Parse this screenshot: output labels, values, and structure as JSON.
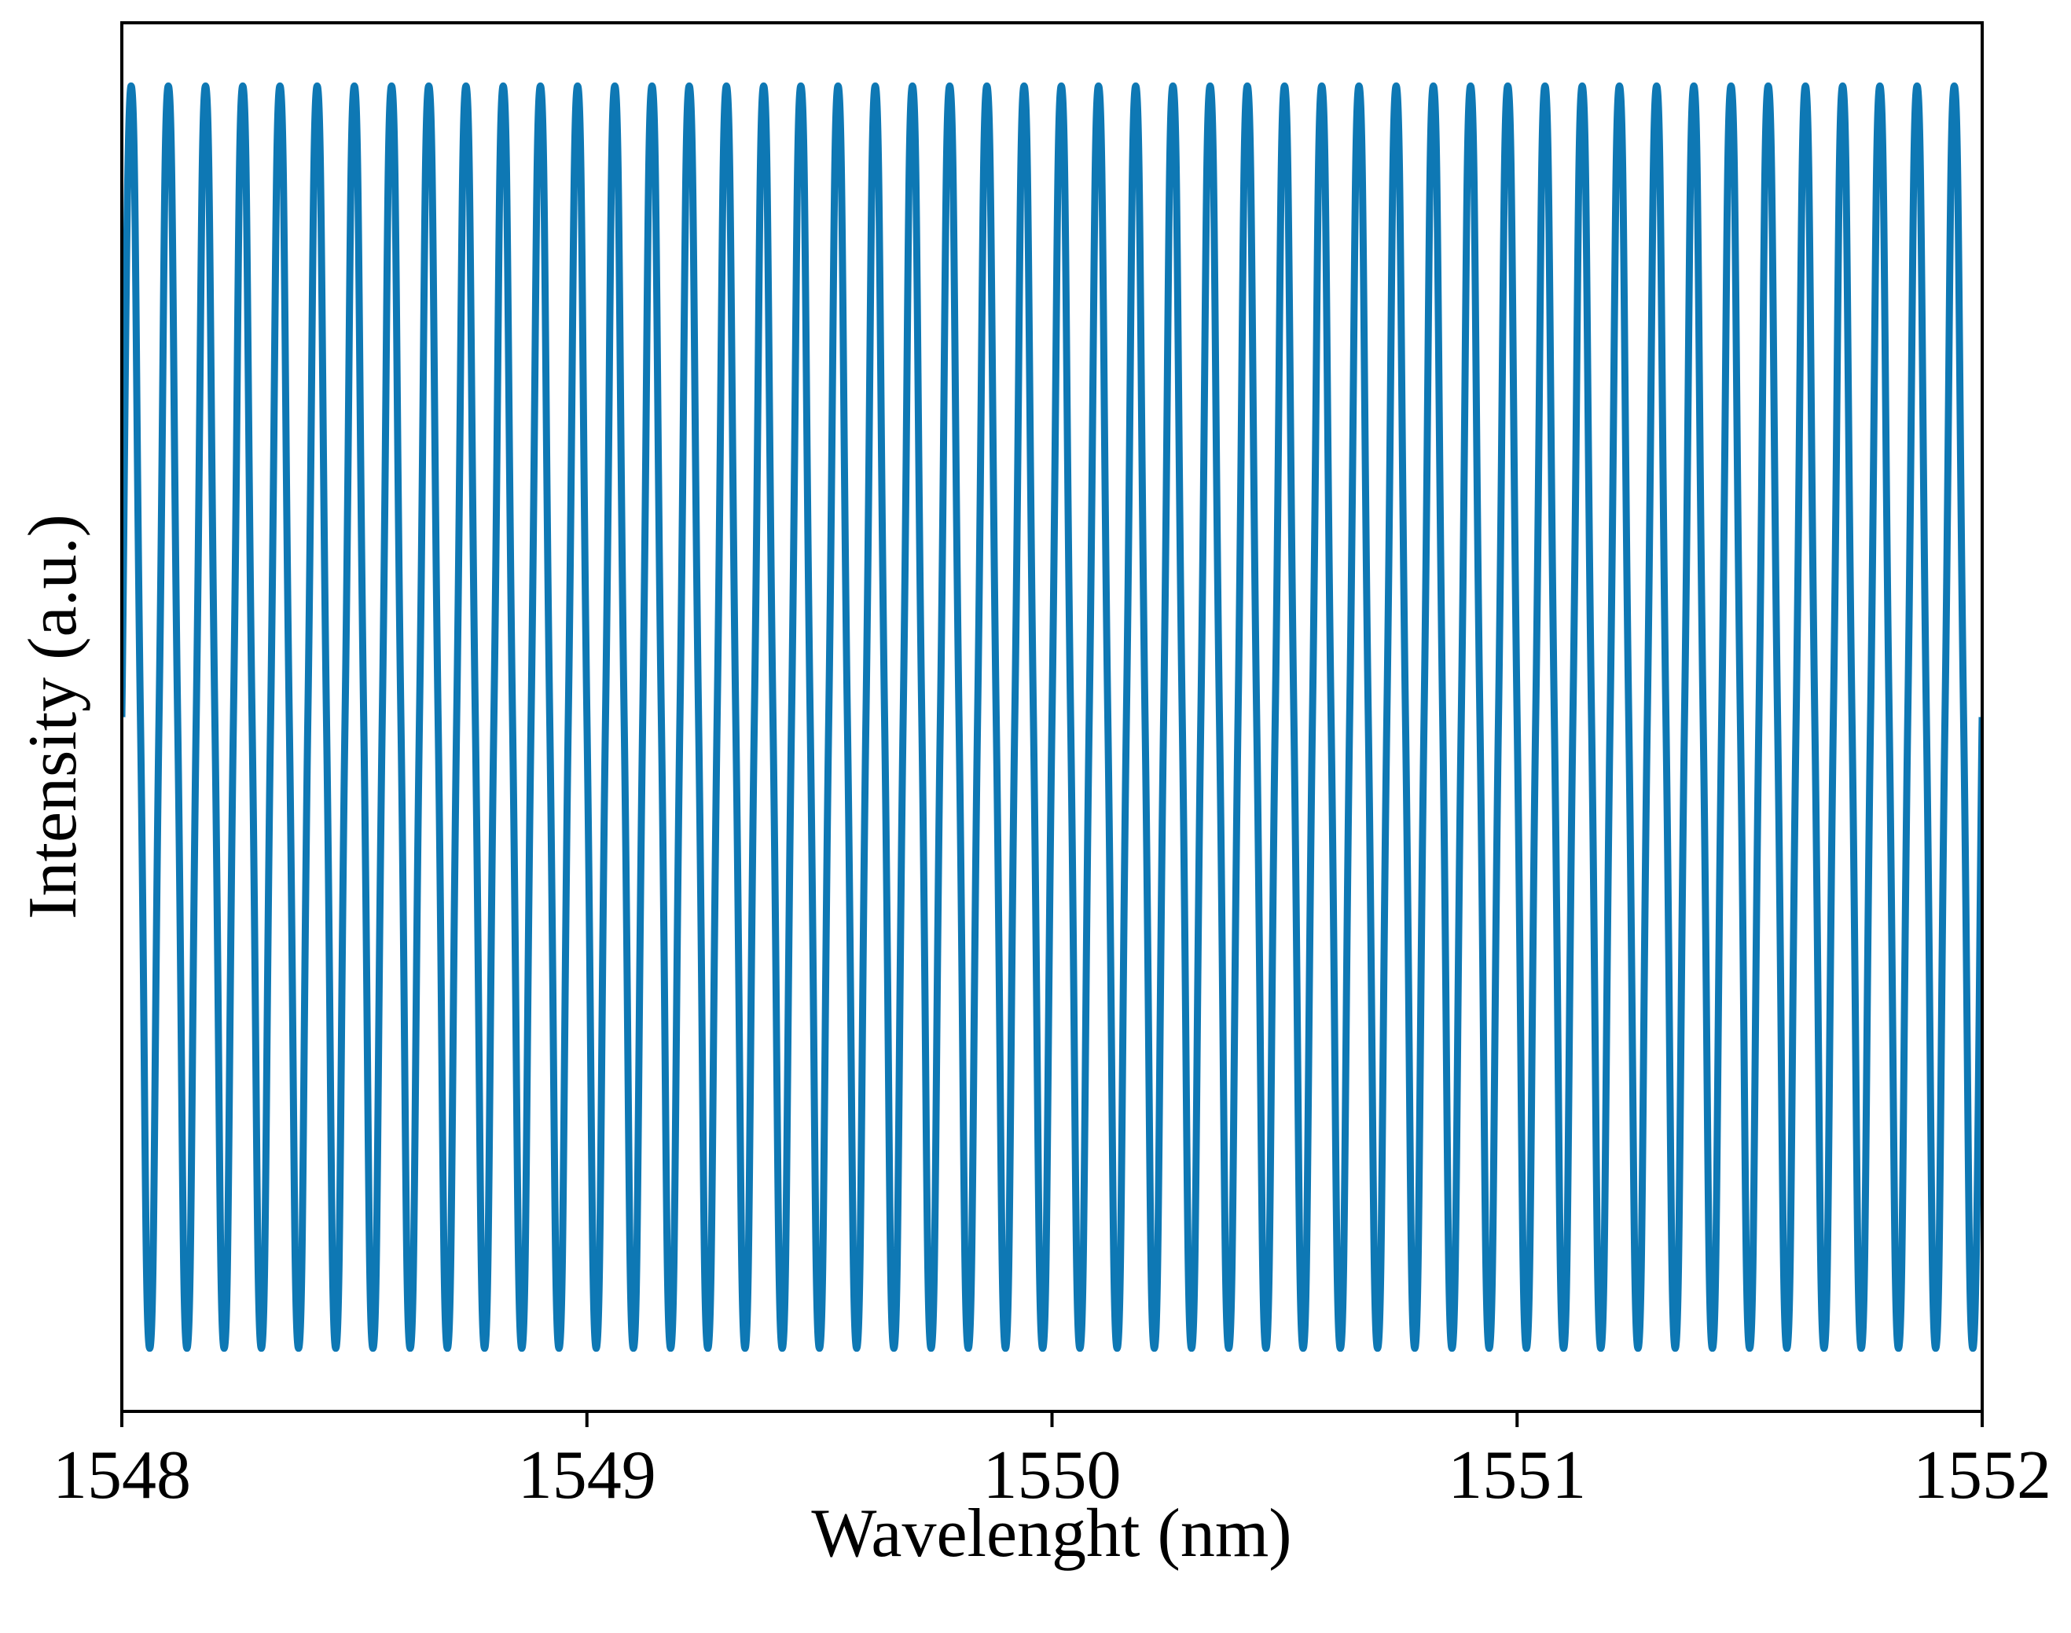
{
  "chart_data": {
    "type": "line",
    "xlabel": "Wavelenght (nm)",
    "ylabel": "Intensity (a.u.)",
    "color": "#0e78b4",
    "xlim": [
      1548,
      1552
    ],
    "ylim": [
      -0.05,
      1.05
    ],
    "xticks": [
      1548,
      1549,
      1550,
      1551,
      1552
    ],
    "x": [
      1548,
      1548.02,
      1548.04,
      1548.06,
      1548.08,
      1548.1,
      1548.12,
      1548.14,
      1548.16,
      1548.18,
      1548.2,
      1548.22,
      1548.24,
      1548.26,
      1548.28,
      1548.3,
      1548.32,
      1548.34,
      1548.36,
      1548.38,
      1548.4,
      1548.42,
      1548.44,
      1548.46,
      1548.48,
      1548.5,
      1548.52,
      1548.54,
      1548.56,
      1548.58,
      1548.6,
      1548.62,
      1548.64,
      1548.66,
      1548.68,
      1548.7,
      1548.72,
      1548.74,
      1548.76,
      1548.78,
      1548.8,
      1548.82,
      1548.84,
      1548.86,
      1548.88,
      1548.9,
      1548.92,
      1548.94,
      1548.96,
      1548.98,
      1549,
      1549.02,
      1549.04,
      1549.06,
      1549.08,
      1549.1,
      1549.12,
      1549.14,
      1549.16,
      1549.18,
      1549.2,
      1549.22,
      1549.24,
      1549.26,
      1549.28,
      1549.3,
      1549.32,
      1549.34,
      1549.36,
      1549.38,
      1549.4,
      1549.42,
      1549.44,
      1549.46,
      1549.48,
      1549.5,
      1549.52,
      1549.54,
      1549.56,
      1549.58,
      1549.6,
      1549.62,
      1549.64,
      1549.66,
      1549.68,
      1549.7,
      1549.72,
      1549.74,
      1549.76,
      1549.78,
      1549.8,
      1549.82,
      1549.84,
      1549.86,
      1549.88,
      1549.9,
      1549.92,
      1549.94,
      1549.96,
      1549.98,
      1550,
      1550.02,
      1550.04,
      1550.06,
      1550.08,
      1550.1,
      1550.12,
      1550.14,
      1550.16,
      1550.18,
      1550.2,
      1550.22,
      1550.24,
      1550.26,
      1550.28,
      1550.3,
      1550.32,
      1550.34,
      1550.36,
      1550.38,
      1550.4,
      1550.42,
      1550.44,
      1550.46,
      1550.48,
      1550.5,
      1550.52,
      1550.54,
      1550.56,
      1550.58,
      1550.6,
      1550.62,
      1550.64,
      1550.66,
      1550.68,
      1550.7,
      1550.72,
      1550.74,
      1550.76,
      1550.78,
      1550.8,
      1550.82,
      1550.84,
      1550.86,
      1550.88,
      1550.9,
      1550.92,
      1550.94,
      1550.96,
      1550.98,
      1551,
      1551.02,
      1551.04,
      1551.06,
      1551.08,
      1551.1,
      1551.12,
      1551.14,
      1551.16,
      1551.18,
      1551.2,
      1551.22,
      1551.24,
      1551.26,
      1551.28,
      1551.3,
      1551.32,
      1551.34,
      1551.36,
      1551.38,
      1551.4,
      1551.42,
      1551.44,
      1551.46,
      1551.48,
      1551.5,
      1551.52,
      1551.54,
      1551.56,
      1551.58,
      1551.6,
      1551.62,
      1551.64,
      1551.66,
      1551.68,
      1551.7,
      1551.72,
      1551.74,
      1551.76,
      1551.78,
      1551.8,
      1551.82,
      1551.84,
      1551.86,
      1551.88,
      1551.9,
      1551.92,
      1551.94,
      1551.96,
      1551.98,
      1552
    ],
    "values": [
      0.5,
      1,
      0.5,
      0,
      0.5,
      1,
      0.5,
      0,
      0.5,
      1,
      0.5,
      0,
      0.5,
      1,
      0.5,
      0,
      0.5,
      1,
      0.5,
      0,
      0.5,
      1,
      0.5,
      0,
      0.5,
      1,
      0.5,
      0,
      0.5,
      1,
      0.5,
      0,
      0.5,
      1,
      0.5,
      0,
      0.5,
      1,
      0.5,
      0,
      0.5,
      1,
      0.5,
      0,
      0.5,
      1,
      0.5,
      0,
      0.5,
      1,
      0.5,
      0,
      0.5,
      1,
      0.5,
      0,
      0.5,
      1,
      0.5,
      0,
      0.5,
      1,
      0.5,
      0,
      0.5,
      1,
      0.5,
      0,
      0.5,
      1,
      0.5,
      0,
      0.5,
      1,
      0.5,
      0,
      0.5,
      1,
      0.5,
      0,
      0.5,
      1,
      0.5,
      0,
      0.5,
      1,
      0.5,
      0,
      0.5,
      1,
      0.5,
      0,
      0.5,
      1,
      0.5,
      0,
      0.5,
      1,
      0.5,
      0,
      0.5,
      1,
      0.5,
      0,
      0.5,
      1,
      0.5,
      0,
      0.5,
      1,
      0.5,
      0,
      0.5,
      1,
      0.5,
      0,
      0.5,
      1,
      0.5,
      0,
      0.5,
      1,
      0.5,
      0,
      0.5,
      1,
      0.5,
      0,
      0.5,
      1,
      0.5,
      0,
      0.5,
      1,
      0.5,
      0,
      0.5,
      1,
      0.5,
      0,
      0.5,
      1,
      0.5,
      0,
      0.5,
      1,
      0.5,
      0,
      0.5,
      1,
      0.5,
      0,
      0.5,
      1,
      0.5,
      0,
      0.5,
      1,
      0.5,
      0,
      0.5,
      1,
      0.5,
      0,
      0.5,
      1,
      0.5,
      0,
      0.5,
      1,
      0.5,
      0,
      0.5,
      1,
      0.5,
      0,
      0.5,
      1,
      0.5,
      0,
      0.5,
      1,
      0.5,
      0,
      0.5,
      1,
      0.5,
      0,
      0.5,
      1,
      0.5,
      0,
      0.5,
      1,
      0.5,
      0,
      0.5,
      1,
      0.5,
      0,
      0.5
    ]
  }
}
